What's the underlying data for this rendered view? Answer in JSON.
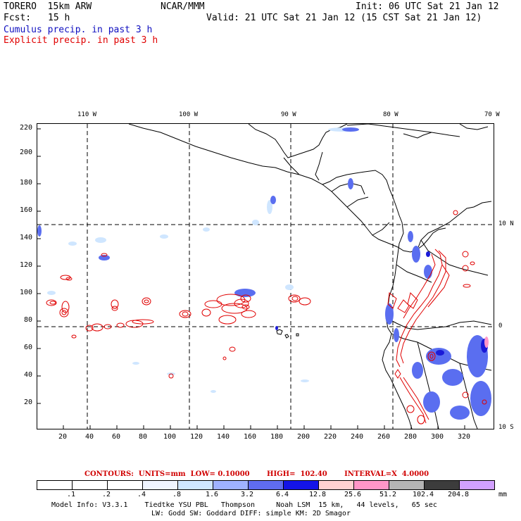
{
  "header": {
    "model": "TORERO  15km ARW",
    "org": "NCAR/MMM",
    "init": "Init: 06 UTC Sat 21 Jan 12",
    "fcst_label": "Fcst:",
    "fcst_value": "15 h",
    "valid": "Valid: 21 UTC Sat 21 Jan 12 (15 CST Sat 21 Jan 12)",
    "legend_cumulus": "Cumulus precip. in past 3 h",
    "legend_explicit": "Explicit precip. in past 3 h"
  },
  "colors": {
    "cumulus": "#1010c0",
    "explicit": "#e00000",
    "precip_light": "#9ec5ff",
    "precip_mid": "#5a6ef0",
    "precip_dark": "#1a1ad8",
    "coast": "#000000"
  },
  "map": {
    "y_ticks": [
      "220",
      "200",
      "180",
      "160",
      "140",
      "120",
      "100",
      "80",
      "60",
      "40",
      "20"
    ],
    "x_ticks": [
      "20",
      "40",
      "60",
      "80",
      "100",
      "120",
      "140",
      "160",
      "180",
      "200",
      "220",
      "240",
      "260",
      "280",
      "300",
      "320"
    ],
    "lon_labels": [
      "110 W",
      "100 W",
      "90 W",
      "80 W",
      "70 W"
    ],
    "lat_labels": [
      "10 N",
      "0",
      "10 S"
    ]
  },
  "contour_info": {
    "text": "CONTOURS:  UNITS=mm  LOW= 0.10000       HIGH=  102.40       INTERVAL=X  4.0000"
  },
  "colorbar": {
    "colors": [
      "#ffffff",
      "#ffffff",
      "#ffffff",
      "#f0f5ff",
      "#cfe6ff",
      "#9fb2ff",
      "#5f6cf0",
      "#1414e6",
      "#ffd2d2",
      "#ff96c8",
      "#b4b4b4",
      "#3c3c3c",
      "#d2a0ff"
    ],
    "labels": [
      ".1",
      ".2",
      ".4",
      ".8",
      "1.6",
      "3.2",
      "6.4",
      "12.8",
      "25.6",
      "51.2",
      "102.4",
      "204.8"
    ],
    "unit": "mm"
  },
  "footer": {
    "line1": "Model Info: V3.3.1    Tiedtke YSU PBL   Thompson     Noah LSM  15 km,   44 levels,   65 sec",
    "line2": "LW: Godd SW: Goddard DIFF: simple KM: 2D Smagor"
  }
}
